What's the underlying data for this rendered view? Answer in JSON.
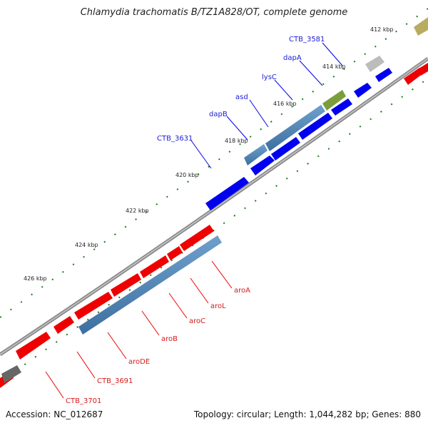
{
  "title": "Chlamydia trachomatis B/TZ1A828/OT, complete genome",
  "footer": {
    "accession": "Accession: NC_012687",
    "summary": "Topology: circular; Length: 1,044,282 bp; Genes: 880"
  },
  "scale_ticks": [
    "412 kbp",
    "414 kbp",
    "416 kbp",
    "418 kbp",
    "420 kbp",
    "422 kbp",
    "424 kbp",
    "426 kbp"
  ],
  "genes_forward": [
    "CTB_3581",
    "dapA",
    "lysC",
    "asd",
    "dapB",
    "CTB_3631"
  ],
  "genes_reverse": [
    "aroA",
    "aroL",
    "aroC",
    "aroB",
    "aroDE",
    "CTB_3691",
    "CTB_3701"
  ],
  "colors": {
    "backbone": "#8c8c8c",
    "forward_cds": "#0000ee",
    "reverse_cds": "#ee0000",
    "gene_bar": "#4d86b8",
    "tick": "#1a7a1a",
    "label_forward": "#1b1bd8",
    "label_reverse": "#d41c1c"
  }
}
